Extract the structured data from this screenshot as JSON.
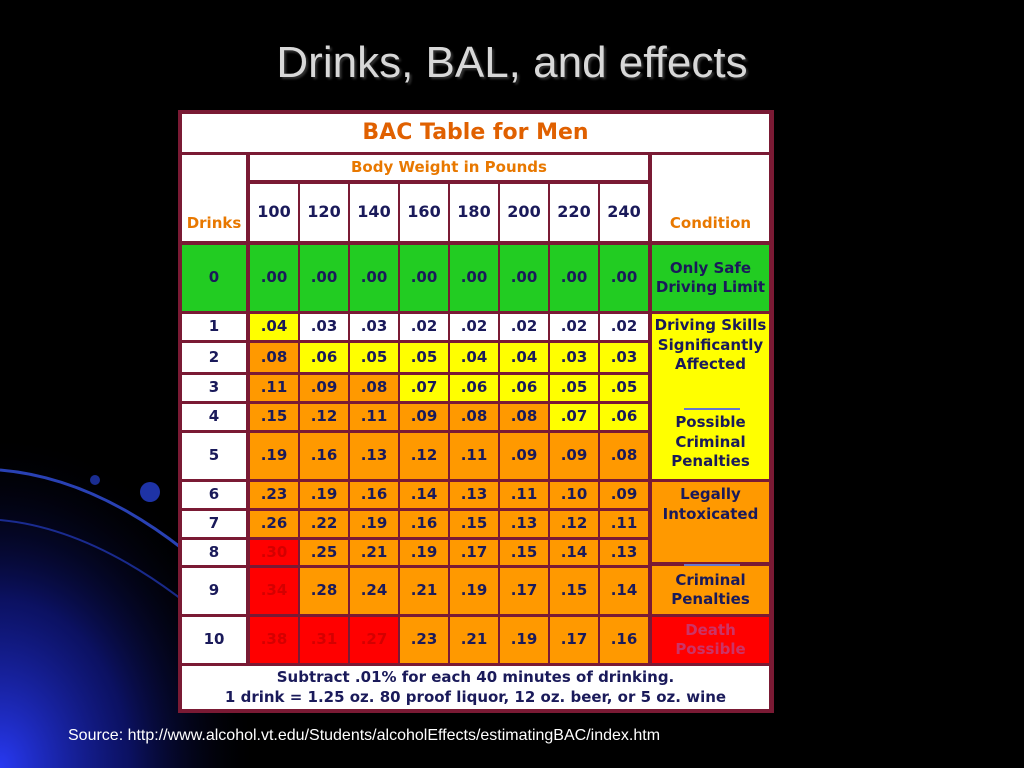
{
  "slide": {
    "title": "Drinks, BAL, and effects",
    "source": "Source: http://www.alcohol.vt.edu/Students/alcoholEffects/estimatingBAC/index.htm"
  },
  "table": {
    "title": "BAC Table for Men",
    "body_weight_label": "Body Weight in Pounds",
    "drinks_label": "Drinks",
    "condition_label": "Condition",
    "weights": [
      "100",
      "120",
      "140",
      "160",
      "180",
      "200",
      "220",
      "240"
    ],
    "rows": [
      {
        "drinks": "0",
        "values": [
          ".00",
          ".00",
          ".00",
          ".00",
          ".00",
          ".00",
          ".00",
          ".00"
        ]
      },
      {
        "drinks": "1",
        "values": [
          ".04",
          ".03",
          ".03",
          ".02",
          ".02",
          ".02",
          ".02",
          ".02"
        ]
      },
      {
        "drinks": "2",
        "values": [
          ".08",
          ".06",
          ".05",
          ".05",
          ".04",
          ".04",
          ".03",
          ".03"
        ]
      },
      {
        "drinks": "3",
        "values": [
          ".11",
          ".09",
          ".08",
          ".07",
          ".06",
          ".06",
          ".05",
          ".05"
        ]
      },
      {
        "drinks": "4",
        "values": [
          ".15",
          ".12",
          ".11",
          ".09",
          ".08",
          ".08",
          ".07",
          ".06"
        ]
      },
      {
        "drinks": "5",
        "values": [
          ".19",
          ".16",
          ".13",
          ".12",
          ".11",
          ".09",
          ".09",
          ".08"
        ]
      },
      {
        "drinks": "6",
        "values": [
          ".23",
          ".19",
          ".16",
          ".14",
          ".13",
          ".11",
          ".10",
          ".09"
        ]
      },
      {
        "drinks": "7",
        "values": [
          ".26",
          ".22",
          ".19",
          ".16",
          ".15",
          ".13",
          ".12",
          ".11"
        ]
      },
      {
        "drinks": "8",
        "values": [
          ".30",
          ".25",
          ".21",
          ".19",
          ".17",
          ".15",
          ".14",
          ".13"
        ]
      },
      {
        "drinks": "9",
        "values": [
          ".34",
          ".28",
          ".24",
          ".21",
          ".19",
          ".17",
          ".15",
          ".14"
        ]
      },
      {
        "drinks": "10",
        "values": [
          ".38",
          ".31",
          ".27",
          ".23",
          ".21",
          ".19",
          ".17",
          ".16"
        ]
      }
    ],
    "conditions": {
      "safe": "Only Safe Driving Limit",
      "skills": "Driving Skills Significantly Affected",
      "possible_penalties": "Possible Criminal Penalties",
      "intoxicated": "Legally Intoxicated",
      "criminal_penalties": "Criminal Penalties",
      "death": "Death Possible"
    },
    "footer_line1": "Subtract .01% for each 40 minutes of drinking.",
    "footer_line2": "1 drink = 1.25 oz. 80 proof liquor, 12 oz. beer, or 5 oz. wine"
  },
  "colors": {
    "safe": "#22cc22",
    "caution": "#ffff00",
    "intoxicated": "#ff9900",
    "danger": "#ff0000"
  }
}
